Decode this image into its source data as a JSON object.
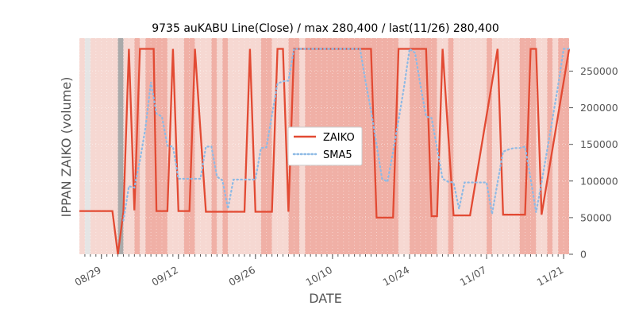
{
  "chart_data": {
    "type": "line",
    "title": "9735 auKABU Line(Close) / max 280,400 / last(11/26) 280,400",
    "xlabel": "DATE",
    "ylabel": "IPPAN ZAIKO (volume)",
    "x_range_days": [
      -4,
      85
    ],
    "ylim": [
      0,
      295000
    ],
    "yticks": [
      0,
      50000,
      100000,
      150000,
      200000,
      250000
    ],
    "ytick_labels": [
      "0",
      "50000",
      "100000",
      "150000",
      "200000",
      "250000"
    ],
    "xticks": [
      {
        "day": 0,
        "label": "08/29"
      },
      {
        "day": 14,
        "label": "09/12"
      },
      {
        "day": 28,
        "label": "09/26"
      },
      {
        "day": 42,
        "label": "10/10"
      },
      {
        "day": 56,
        "label": "10/24"
      },
      {
        "day": 70,
        "label": "11/07"
      },
      {
        "day": 84,
        "label": "11/21"
      }
    ],
    "legend": {
      "position": "center-right",
      "entries": [
        "ZAIKO",
        "SMA5"
      ]
    },
    "colors": {
      "zaiko": "#E24A33",
      "sma": "#8EBAE5",
      "band_light": "#F6D8D2",
      "band_dark": "#F0B0A6",
      "gray_band": "#AAAAAA",
      "edge": "#E5E5E5"
    },
    "shade_bands_light": [
      [
        -4,
        -3
      ],
      [
        -2,
        6
      ],
      [
        7,
        8
      ],
      [
        12,
        15
      ],
      [
        17,
        20
      ],
      [
        21,
        22
      ],
      [
        23,
        29
      ],
      [
        31,
        34
      ],
      [
        36,
        37
      ],
      [
        54,
        56
      ],
      [
        61,
        63
      ],
      [
        64,
        70
      ],
      [
        71,
        76
      ],
      [
        79,
        81
      ],
      [
        82,
        83
      ]
    ],
    "shade_bands_dark": [
      [
        6,
        7
      ],
      [
        8,
        12
      ],
      [
        15,
        17
      ],
      [
        20,
        21
      ],
      [
        22,
        23
      ],
      [
        29,
        31
      ],
      [
        34,
        36
      ],
      [
        37,
        54
      ],
      [
        56,
        61
      ],
      [
        63,
        64
      ],
      [
        70,
        71
      ],
      [
        76,
        79
      ],
      [
        81,
        82
      ],
      [
        83,
        85
      ]
    ],
    "gray_bands": [
      [
        3,
        4
      ]
    ],
    "series": [
      {
        "name": "ZAIKO",
        "style": "solid",
        "x": [
          -4,
          2,
          3,
          4,
          5,
          6,
          7,
          8,
          9,
          9.5,
          10,
          11,
          12,
          13,
          14,
          15,
          16,
          17,
          19,
          20,
          21,
          22,
          26,
          27,
          28,
          30,
          31,
          32,
          33,
          34,
          35,
          36,
          37,
          38,
          44,
          49,
          50,
          51,
          53,
          54,
          55,
          56,
          57,
          58,
          59,
          60,
          61,
          62,
          64,
          65,
          66,
          67,
          72,
          73,
          74,
          75,
          76,
          77,
          78,
          79,
          80,
          85
        ],
        "y": [
          59000,
          59000,
          0,
          58000,
          280400,
          60000,
          280400,
          280400,
          280400,
          280400,
          59000,
          59000,
          59000,
          280400,
          59000,
          59000,
          59000,
          280400,
          58000,
          58000,
          58000,
          58000,
          58000,
          280400,
          58000,
          58000,
          58000,
          280400,
          280400,
          58000,
          280400,
          280400,
          280400,
          280400,
          280400,
          280400,
          50000,
          50000,
          50000,
          280400,
          280400,
          280400,
          280400,
          280400,
          280400,
          52000,
          52000,
          280400,
          53000,
          53000,
          53000,
          53000,
          280400,
          54000,
          54000,
          54000,
          54000,
          54000,
          280400,
          280400,
          54000,
          280400
        ]
      },
      {
        "name": "SMA5",
        "style": "dotted",
        "x": [
          4,
          5,
          6,
          7,
          8,
          9,
          10,
          11,
          12,
          13,
          14,
          15,
          16,
          17,
          18,
          19,
          20,
          21,
          22,
          23,
          24,
          25,
          26,
          27,
          28,
          29,
          30,
          31,
          32,
          33,
          34,
          35,
          36,
          37,
          38,
          39,
          40,
          41,
          42,
          43,
          44,
          45,
          46,
          47,
          48,
          49,
          50,
          51,
          52,
          53,
          54,
          55,
          56,
          57,
          58,
          59,
          60,
          61,
          62,
          63,
          64,
          65,
          66,
          67,
          68,
          69,
          70,
          71,
          72,
          73,
          74,
          75,
          76,
          77,
          78,
          79,
          80,
          81,
          82,
          83,
          84,
          85
        ],
        "y": [
          46000,
          93000,
          91000,
          128000,
          172000,
          235000,
          192000,
          188000,
          148000,
          147000,
          103000,
          103000,
          103000,
          103000,
          103000,
          147000,
          147000,
          106000,
          101000,
          62000,
          102000,
          102000,
          102000,
          102000,
          102000,
          145000,
          146000,
          190000,
          233000,
          236000,
          237000,
          280400,
          280400,
          280400,
          280400,
          280400,
          280400,
          280400,
          280400,
          280400,
          280400,
          280400,
          280400,
          280400,
          236000,
          196000,
          150000,
          103000,
          99000,
          140000,
          183000,
          228000,
          280400,
          275000,
          230000,
          188000,
          186000,
          145000,
          103000,
          99000,
          98000,
          62000,
          98000,
          98000,
          98000,
          98000,
          98000,
          55000,
          98000,
          140000,
          143000,
          145000,
          145000,
          147000,
          103000,
          57000,
          98000,
          142000,
          186000,
          230000,
          280400,
          280400
        ]
      }
    ]
  }
}
